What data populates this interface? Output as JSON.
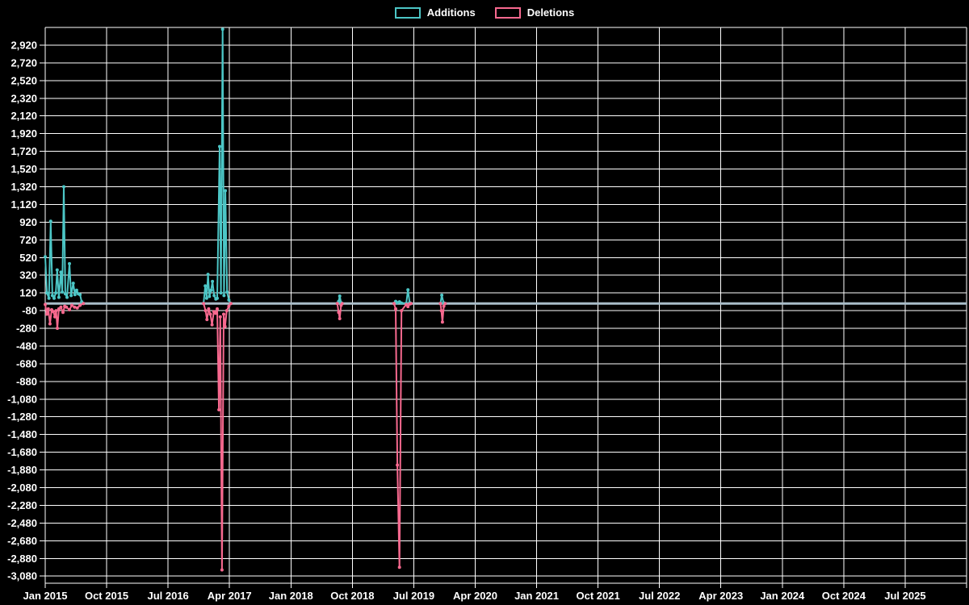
{
  "legend": {
    "items": [
      {
        "label": "Additions",
        "color": "#4cc6c6"
      },
      {
        "label": "Deletions",
        "color": "#f8698f"
      }
    ]
  },
  "chart_data": {
    "type": "line",
    "title": "",
    "xlabel": "",
    "ylabel": "",
    "background_color": "#000000",
    "grid": true,
    "grid_color": "#ffffff",
    "text_color": "#ffffff",
    "legend_position": "top",
    "zero_line": {
      "value": 0,
      "color": "#a9bdc9",
      "width": 3
    },
    "x_axis": {
      "unit": "months since Jan 2015",
      "domain_months": [
        0,
        135
      ],
      "gridline_step_months": 9,
      "tick_months": [
        0,
        9,
        18,
        27,
        36,
        45,
        54,
        63,
        72,
        81,
        90,
        99,
        108,
        117,
        126
      ],
      "tick_labels": [
        "Jan 2015",
        "Oct 2015",
        "Jul 2016",
        "Apr 2017",
        "Jan 2018",
        "Oct 2018",
        "Jul 2019",
        "Apr 2020",
        "Jan 2021",
        "Oct 2021",
        "Jul 2022",
        "Apr 2023",
        "Jan 2024",
        "Oct 2024",
        "Jul 2025"
      ]
    },
    "y_axis": {
      "range": [
        -3160,
        3120
      ],
      "gridline_values": [
        3120,
        2920,
        2720,
        2520,
        2320,
        2120,
        1920,
        1720,
        1520,
        1320,
        1120,
        920,
        720,
        520,
        320,
        120,
        -80,
        -280,
        -480,
        -680,
        -880,
        -1080,
        -1280,
        -1480,
        -1680,
        -1880,
        -2080,
        -2280,
        -2480,
        -2680,
        -2880,
        -3080
      ],
      "tick_values": [
        2920,
        2720,
        2520,
        2320,
        2120,
        1920,
        1720,
        1520,
        1320,
        1120,
        920,
        720,
        520,
        320,
        120,
        -80,
        -280,
        -480,
        -680,
        -880,
        -1080,
        -1280,
        -1480,
        -1680,
        -1880,
        -2080,
        -2280,
        -2480,
        -2680,
        -2880,
        -3080
      ],
      "tick_labels": [
        "2,920",
        "2,720",
        "2,520",
        "2,320",
        "2,120",
        "1,920",
        "1,720",
        "1,520",
        "1,320",
        "1,120",
        "920",
        "720",
        "520",
        "320",
        "120",
        "-80",
        "-280",
        "-480",
        "-680",
        "-880",
        "-1,080",
        "-1,280",
        "-1,480",
        "-1,680",
        "-1,880",
        "-2,080",
        "-2,280",
        "-2,480",
        "-2,680",
        "-2,880",
        "-3,080"
      ]
    },
    "series": [
      {
        "name": "Additions",
        "color": "#4cc6c6",
        "line_width": 2,
        "point_radius": 2,
        "segments": [
          [
            [
              0,
              530
            ],
            [
              0.25,
              120
            ],
            [
              0.55,
              60
            ],
            [
              0.8,
              930
            ],
            [
              1.05,
              90
            ],
            [
              1.3,
              60
            ],
            [
              1.55,
              120
            ],
            [
              1.75,
              380
            ],
            [
              2.0,
              70
            ],
            [
              2.3,
              355
            ],
            [
              2.5,
              130
            ],
            [
              2.72,
              1320
            ],
            [
              2.95,
              110
            ],
            [
              3.2,
              70
            ],
            [
              3.55,
              450
            ],
            [
              3.8,
              90
            ],
            [
              4.1,
              230
            ],
            [
              4.35,
              100
            ],
            [
              4.6,
              150
            ],
            [
              4.85,
              110
            ],
            [
              5.1,
              100
            ],
            [
              5.35,
              20
            ],
            [
              5.6,
              0
            ]
          ],
          [
            [
              23.2,
              0
            ],
            [
              23.45,
              200
            ],
            [
              23.65,
              60
            ],
            [
              23.85,
              330
            ],
            [
              24.05,
              80
            ],
            [
              24.3,
              150
            ],
            [
              24.5,
              250
            ],
            [
              24.75,
              90
            ],
            [
              25.0,
              50
            ],
            [
              25.2,
              60
            ],
            [
              25.56,
              1775
            ],
            [
              25.75,
              120
            ],
            [
              26.0,
              3100
            ],
            [
              26.2,
              90
            ],
            [
              26.4,
              1275
            ],
            [
              26.65,
              130
            ],
            [
              26.9,
              40
            ],
            [
              27.2,
              0
            ]
          ],
          [
            [
              42.8,
              0
            ],
            [
              43.0,
              25
            ],
            [
              43.15,
              85
            ],
            [
              43.35,
              10
            ],
            [
              43.5,
              0
            ]
          ],
          [
            [
              51.1,
              0
            ],
            [
              51.35,
              25
            ],
            [
              51.6,
              10
            ],
            [
              51.9,
              20
            ],
            [
              52.2,
              5
            ],
            [
              52.9,
              0
            ],
            [
              53.15,
              155
            ],
            [
              53.4,
              10
            ],
            [
              53.6,
              0
            ]
          ],
          [
            [
              57.9,
              0
            ],
            [
              58.1,
              95
            ],
            [
              58.35,
              10
            ],
            [
              58.6,
              0
            ]
          ]
        ]
      },
      {
        "name": "Deletions",
        "color": "#f8698f",
        "line_width": 2,
        "point_radius": 2,
        "segments": [
          [
            [
              0,
              -10
            ],
            [
              0.24,
              -120
            ],
            [
              0.45,
              -60
            ],
            [
              0.7,
              -230
            ],
            [
              0.95,
              -70
            ],
            [
              1.2,
              -90
            ],
            [
              1.42,
              -150
            ],
            [
              1.6,
              -80
            ],
            [
              1.77,
              -280
            ],
            [
              2.0,
              -60
            ],
            [
              2.3,
              -40
            ],
            [
              2.6,
              -100
            ],
            [
              2.85,
              -30
            ],
            [
              3.1,
              -40
            ],
            [
              3.55,
              -70
            ],
            [
              3.9,
              -20
            ],
            [
              4.3,
              -40
            ],
            [
              4.7,
              -50
            ],
            [
              5.1,
              -20
            ],
            [
              5.6,
              0
            ]
          ],
          [
            [
              23.2,
              0
            ],
            [
              23.5,
              -80
            ],
            [
              23.7,
              -180
            ],
            [
              23.95,
              -60
            ],
            [
              24.2,
              -120
            ],
            [
              24.45,
              -240
            ],
            [
              24.7,
              -90
            ],
            [
              24.95,
              -110
            ],
            [
              25.2,
              -60
            ],
            [
              25.45,
              -1200
            ],
            [
              25.65,
              -150
            ],
            [
              25.9,
              -3010
            ],
            [
              26.15,
              -120
            ],
            [
              26.35,
              -260
            ],
            [
              26.6,
              -80
            ],
            [
              26.9,
              -30
            ],
            [
              27.2,
              0
            ]
          ],
          [
            [
              42.8,
              0
            ],
            [
              43.0,
              -100
            ],
            [
              43.15,
              -170
            ],
            [
              43.35,
              -20
            ],
            [
              43.5,
              0
            ]
          ],
          [
            [
              51.1,
              0
            ],
            [
              51.35,
              -60
            ],
            [
              51.6,
              -1825
            ],
            [
              51.9,
              -2980
            ],
            [
              52.2,
              -80
            ],
            [
              52.9,
              -10
            ],
            [
              53.15,
              -35
            ],
            [
              53.4,
              -5
            ],
            [
              53.6,
              0
            ]
          ],
          [
            [
              57.9,
              0
            ],
            [
              58.05,
              -80
            ],
            [
              58.2,
              -210
            ],
            [
              58.4,
              -30
            ],
            [
              58.6,
              0
            ]
          ]
        ]
      }
    ]
  }
}
